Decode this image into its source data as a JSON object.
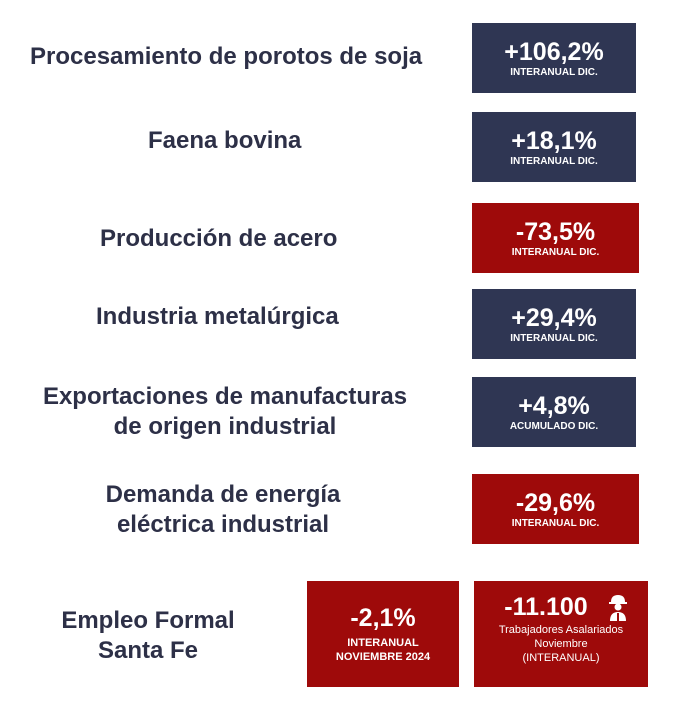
{
  "rows": [
    {
      "label": "Procesamiento de porotos de soja",
      "value": "+106,2%",
      "note": "INTERANUAL DIC.",
      "color": "#2f3653"
    },
    {
      "label": "Faena bovina",
      "value": "+18,1%",
      "note": "INTERANUAL DIC.",
      "color": "#2f3653"
    },
    {
      "label": "Producción de acero",
      "value": "-73,5%",
      "note": "INTERANUAL DIC.",
      "color": "#9e0a0a"
    },
    {
      "label": "Industria metalúrgica",
      "value": "+29,4%",
      "note": "INTERANUAL DIC.",
      "color": "#2f3653"
    },
    {
      "label_line1": "Exportaciones de manufacturas",
      "label_line2": "de origen industrial",
      "value": "+4,8%",
      "note": "ACUMULADO DIC.",
      "color": "#2f3653"
    },
    {
      "label_line1": "Demanda de energía",
      "label_line2": "eléctrica industrial",
      "value": "-29,6%",
      "note": "INTERANUAL DIC.",
      "color": "#9e0a0a"
    }
  ],
  "employment": {
    "label_line1": "Empleo Formal",
    "label_line2": "Santa Fe",
    "box1": {
      "value": "-2,1%",
      "note_line1": "INTERANUAL",
      "note_line2": "NOVIEMBRE 2024"
    },
    "box2": {
      "value": "-11.100",
      "note_line1": "Trabajadores Asalariados",
      "note_line2": "Noviembre",
      "note_line3": "(INTERANUAL)",
      "icon": "worker-icon"
    }
  },
  "colors": {
    "navy": "#2f3653",
    "red": "#9e0a0a",
    "text": "#2d3047"
  }
}
